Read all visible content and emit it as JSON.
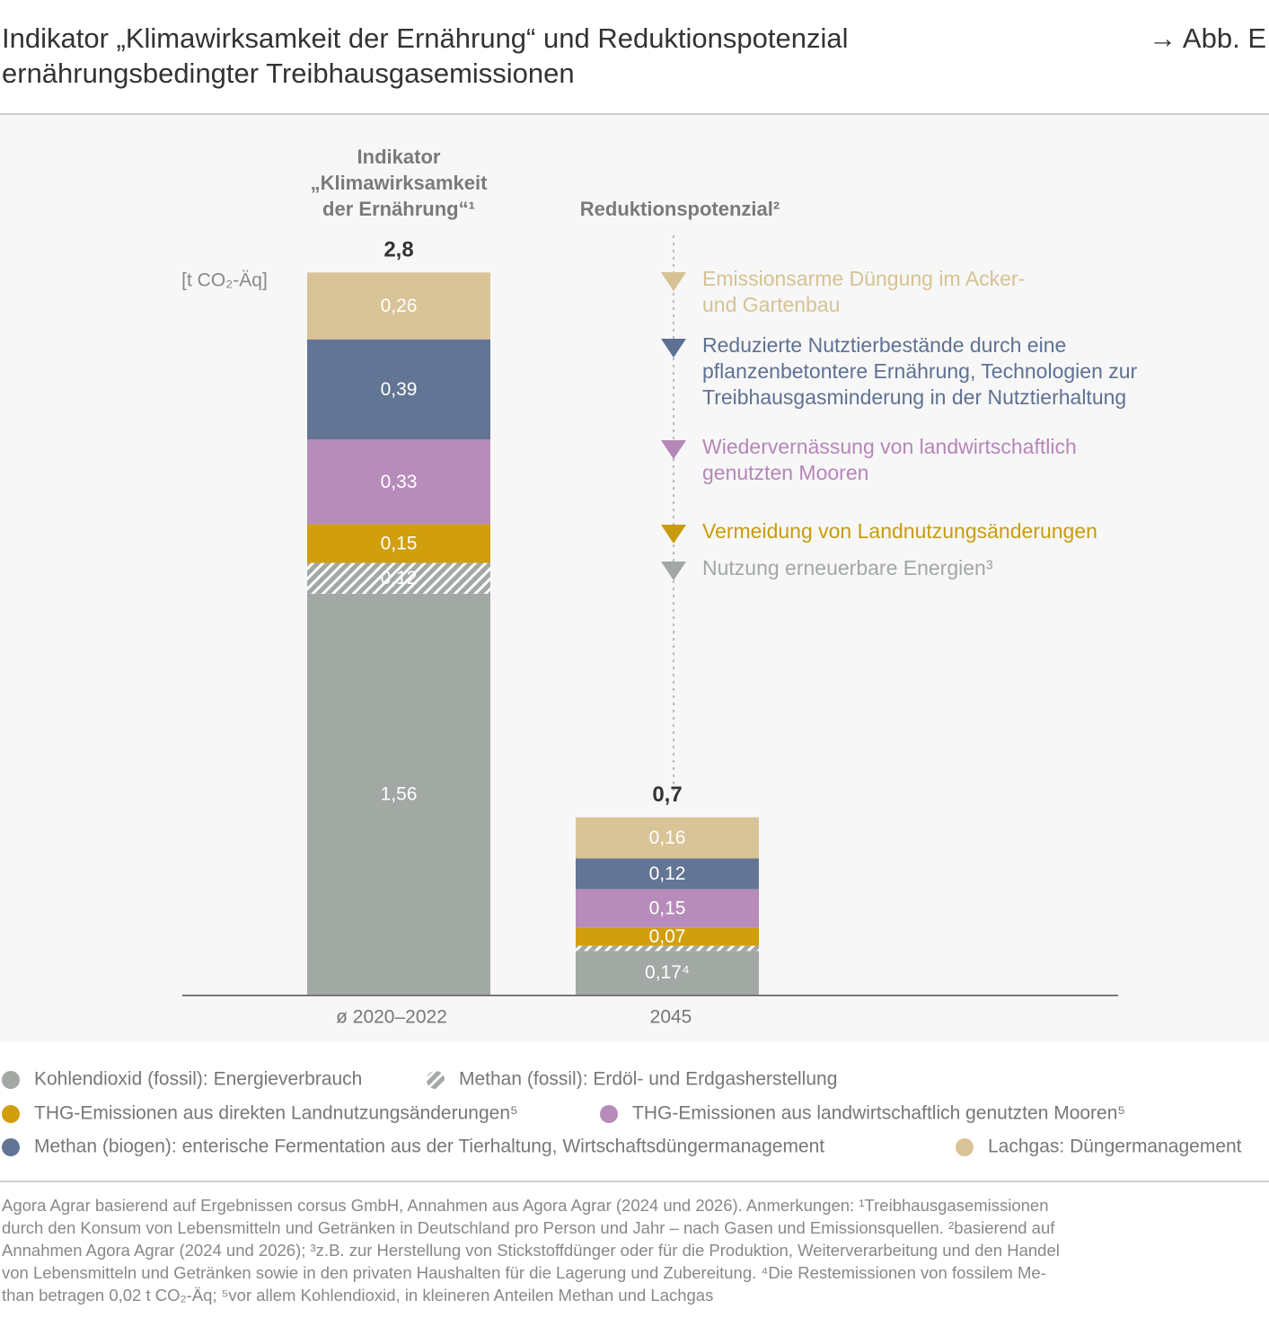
{
  "chart_data": {
    "type": "stacked-bar",
    "title": [
      "Indikator „Klimawirksamkeit der Ernährung“ und Reduktionspotenzial",
      "ernährungsbedingter Treibhausgasemissionen"
    ],
    "figure_ref": "→ Abb. E",
    "column_headers": [
      [
        "Indikator",
        "„Klimawirksamkeit",
        "der Ernährung“¹"
      ],
      [
        "Reduktionspotenzial²"
      ]
    ],
    "unit": "[t CO₂-Äq]",
    "categories": [
      "ø 2020–2022",
      "2045"
    ],
    "totals": [
      2.8,
      0.7
    ],
    "totals_labels": [
      "2,8",
      "0,7"
    ],
    "series": [
      {
        "name": "Kohlendioxid (fossil): Energieverbrauch",
        "color": "#a2a8a3",
        "values": [
          1.56,
          0.17
        ],
        "value_labels": [
          "1,56",
          "0,17⁴"
        ]
      },
      {
        "name": "Methan (fossil): Erdöl- und Erdgasherstellung",
        "color": "#a2a8a3",
        "pattern": "hatch",
        "values": [
          0.12,
          0.02
        ],
        "value_labels": [
          "0,12",
          null
        ]
      },
      {
        "name": "THG-Emissionen aus direkten Landnutzungsänderungen⁵",
        "color": "#d19e0e",
        "values": [
          0.15,
          0.07
        ],
        "value_labels": [
          "0,15",
          "0,07"
        ]
      },
      {
        "name": "THG-Emissionen aus landwirtschaftlich genutzten Mooren⁵",
        "color": "#b88cba",
        "values": [
          0.33,
          0.15
        ],
        "value_labels": [
          "0,33",
          "0,15"
        ]
      },
      {
        "name": "Methan (biogen): enterische Fermentation aus der Tierhaltung, Wirtschaftsdüngermanagement",
        "color": "#637594",
        "values": [
          0.39,
          0.12
        ],
        "value_labels": [
          "0,39",
          "0,12"
        ]
      },
      {
        "name": "Lachgas: Düngermanagement",
        "color": "#d9c497",
        "values": [
          0.26,
          0.16
        ],
        "value_labels": [
          "0,26",
          "0,16"
        ]
      }
    ],
    "reductions": [
      {
        "label": [
          "Emissionsarme Düngung im Acker-",
          "und Gartenbau"
        ],
        "color": "#d6c293"
      },
      {
        "label": [
          "Reduzierte Nutztierbestände durch eine",
          "pflanzenbetontere Ernährung, Technologien zur",
          "Treibhausgasminderung in der Nutztierhaltung"
        ],
        "color": "#5f7192"
      },
      {
        "label": [
          "Wiedervernässung von landwirtschaftlich",
          "genutzten Mooren"
        ],
        "color": "#b586b8"
      },
      {
        "label": [
          "Vermeidung von Landnutzungsänderungen"
        ],
        "color": "#c99b0e"
      },
      {
        "label": [
          "Nutzung erneuerbare Energien³"
        ],
        "color": "#a2a8a3"
      }
    ],
    "source": [
      "Agora Agrar basierend auf Ergebnissen corsus GmbH, Annahmen aus Agora Agrar (2024 und 2026). Anmerkungen: ¹Treibhausgasemissionen",
      "durch den Konsum von Lebensmitteln und Getränken in Deutschland pro Person und Jahr – nach Gasen und Emissionsquellen. ²basierend auf",
      "Annahmen Agora Agrar (2024 und 2026); ³z.B. zur Herstellung von Stickstoffdünger oder für die Produktion, Weiterverarbeitung und den Handel",
      "von Lebensmitteln und Getränken sowie in den privaten Haushalten für die Lagerung und Zubereitung. ⁴Die Restemissionen von fossilem Me-",
      "than betragen 0,02 t CO₂-Äq; ⁵vor allem Kohlendioxid, in kleineren Anteilen Methan und Lachgas"
    ]
  }
}
